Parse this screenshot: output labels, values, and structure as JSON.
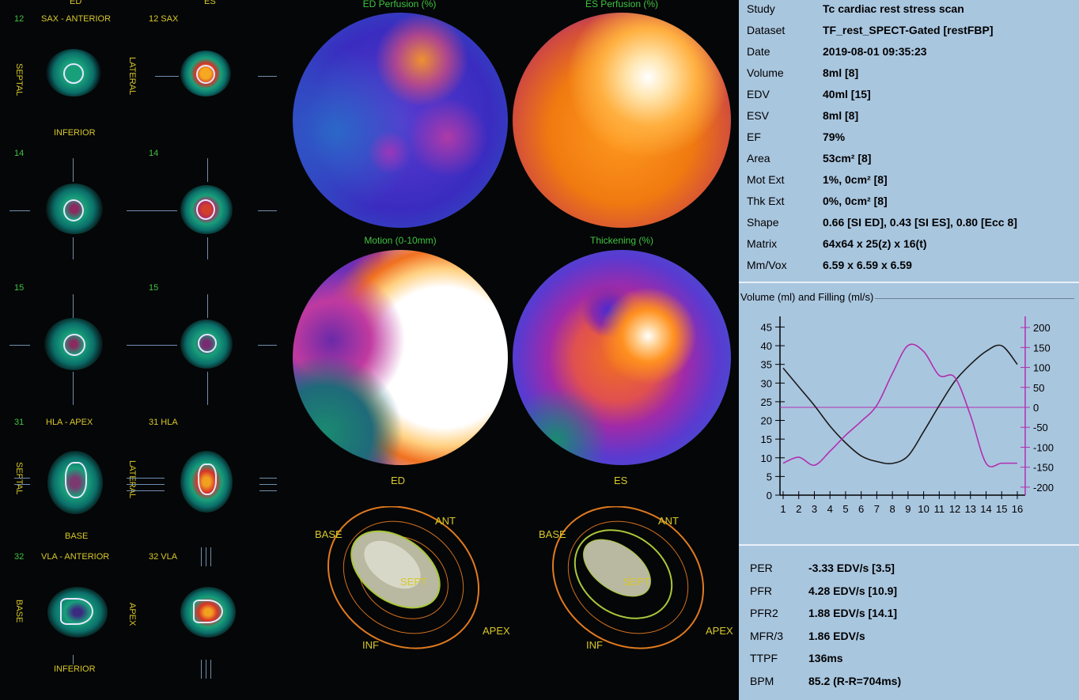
{
  "slices": {
    "ed_label": "ED",
    "es_label": "ES",
    "sax": {
      "number": "12",
      "title_left": "SAX - ANTERIOR",
      "title_right": "12 SAX",
      "septal": "SEPTAL",
      "lateral": "LATERAL",
      "inferior": "INFERIOR"
    },
    "row2": {
      "left_num": "14",
      "right_num": "14"
    },
    "row3": {
      "left_num": "15",
      "right_num": "15"
    },
    "hla": {
      "number": "31",
      "title_left": "HLA - APEX",
      "title_right": "31 HLA",
      "septal": "SEPTAL",
      "lateral": "LATERAL",
      "base": "BASE"
    },
    "vla": {
      "number": "32",
      "title_left": "VLA - ANTERIOR",
      "title_right": "32 VLA",
      "base": "BASE",
      "apex": "APEX",
      "inferior": "INFERIOR"
    }
  },
  "polar_maps": {
    "ed_perfusion": "ED Perfusion (%)",
    "es_perfusion": "ES Perfusion (%)",
    "motion": "Motion (0-10mm)",
    "thickening": "Thickening (%)",
    "ed_label": "ED",
    "es_label": "ES"
  },
  "models": {
    "left": {
      "base": "BASE",
      "ant": "ANT",
      "sept": "SEPT",
      "apex": "APEX",
      "inf": "INF"
    },
    "right": {
      "base": "BASE",
      "ant": "ANT",
      "sept": "SEPT",
      "apex": "APEX",
      "inf": "INF"
    }
  },
  "info": [
    {
      "key": "Study",
      "value": "Tc cardiac rest stress scan"
    },
    {
      "key": "Dataset",
      "value": "TF_rest_SPECT-Gated [restFBP]"
    },
    {
      "key": "Date",
      "value": "2019-08-01 09:35:23"
    },
    {
      "key": "Volume",
      "value": "8ml [8]"
    },
    {
      "key": "EDV",
      "value": "40ml [15]"
    },
    {
      "key": "ESV",
      "value": "8ml [8]"
    },
    {
      "key": "EF",
      "value": "79%"
    },
    {
      "key": "Area",
      "value": "53cm² [8]"
    },
    {
      "key": "Mot Ext",
      "value": "1%, 0cm² [8]"
    },
    {
      "key": "Thk Ext",
      "value": "0%, 0cm² [8]"
    },
    {
      "key": "Shape",
      "value": "0.66 [SI ED],  0.43 [SI ES],  0.80 [Ecc 8]"
    },
    {
      "key": "Matrix",
      "value": "64x64 x 25(z) x 16(t)"
    },
    {
      "key": "Mm/Vox",
      "value": "6.59 x 6.59 x 6.59"
    }
  ],
  "graph_title": "Volume (ml) and Filling (ml/s)",
  "chart_data": {
    "type": "line",
    "title": "Volume (ml) and Filling (ml/s)",
    "x": [
      1,
      2,
      3,
      4,
      5,
      6,
      7,
      8,
      9,
      10,
      11,
      12,
      13,
      14,
      15,
      16
    ],
    "x_ticks": [
      "1",
      "2",
      "3",
      "4",
      "5",
      "6",
      "7",
      "8",
      "9",
      "10",
      "11",
      "12",
      "13",
      "14",
      "15",
      "16"
    ],
    "y_left_ticks": [
      "0",
      "5",
      "10",
      "15",
      "20",
      "25",
      "30",
      "35",
      "40",
      "45"
    ],
    "y_left_lim": [
      0,
      47
    ],
    "y_right_ticks": [
      "-200",
      "-150",
      "-100",
      "-50",
      "0",
      "50",
      "100",
      "150",
      "200"
    ],
    "y_right_lim": [
      -220,
      220
    ],
    "series": [
      {
        "axis": "left",
        "color": "#1a1a1a",
        "values": [
          34,
          29,
          24,
          18.5,
          14,
          10.5,
          9,
          8.5,
          10.5,
          17,
          24,
          30.5,
          35,
          38.5,
          40,
          35
        ]
      },
      {
        "axis": "right",
        "color": "#b030b0",
        "values": [
          -140,
          -125,
          -145,
          -110,
          -70,
          -35,
          5,
          85,
          155,
          140,
          80,
          75,
          -20,
          -140,
          -140,
          -140
        ]
      }
    ],
    "grid": false
  },
  "bottom": [
    {
      "key": "PER",
      "value": "-3.33 EDV/s [3.5]"
    },
    {
      "key": "PFR",
      "value": "4.28 EDV/s [10.9]"
    },
    {
      "key": "PFR2",
      "value": "1.88 EDV/s [14.1]"
    },
    {
      "key": "MFR/3",
      "value": "1.86 EDV/s"
    },
    {
      "key": "TTPF",
      "value": "136ms"
    },
    {
      "key": "BPM",
      "value": "85.2 (R-R=704ms)"
    }
  ]
}
